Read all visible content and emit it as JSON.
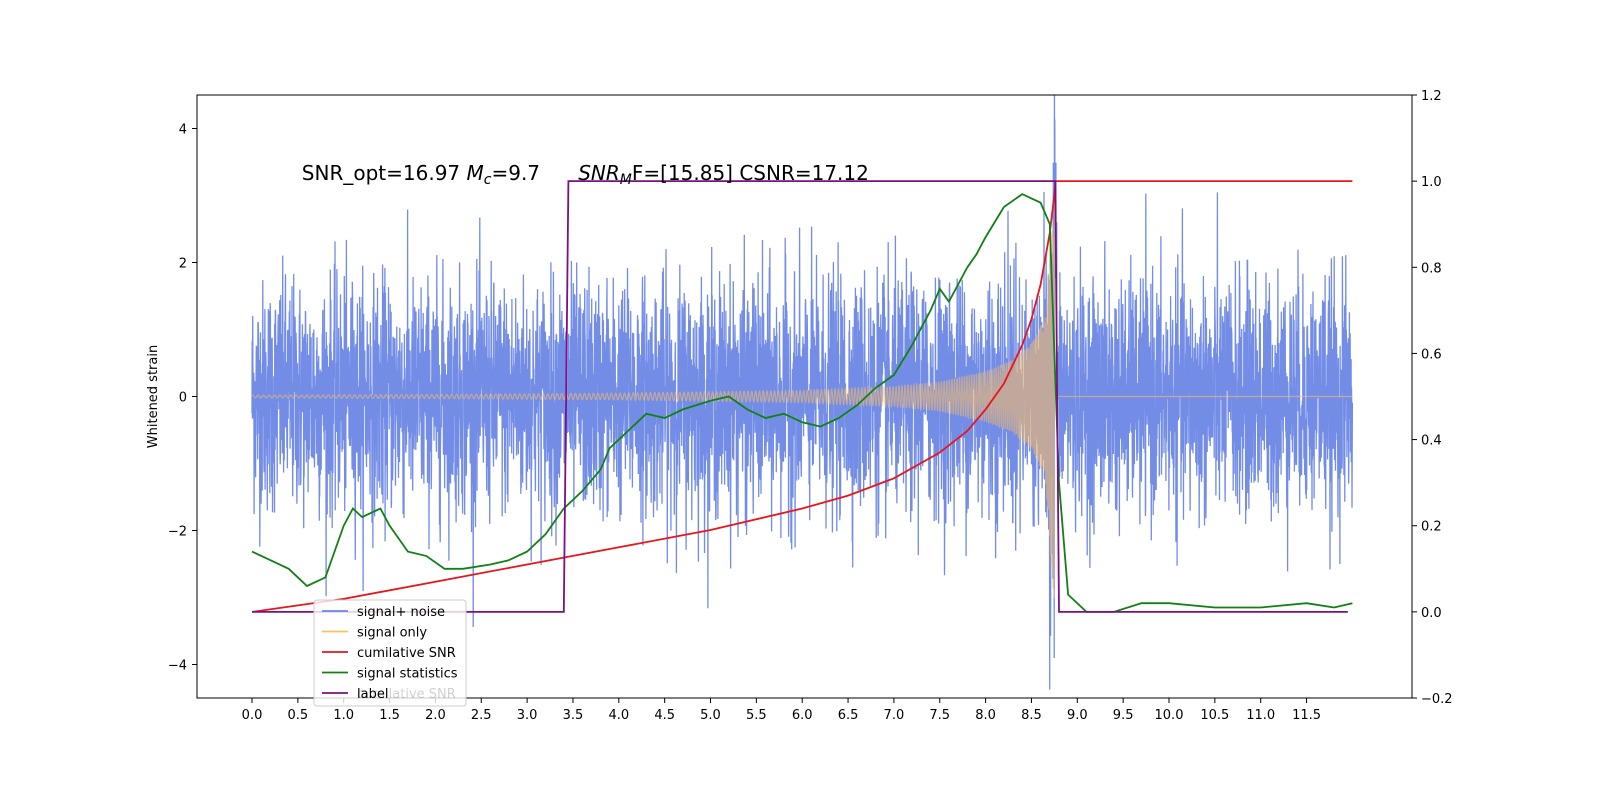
{
  "chart_data": {
    "type": "line",
    "title_parts": [
      "SNR_opt=16.97 ",
      "M",
      "c",
      "=9.7      ",
      "SNR",
      "M",
      "F=[15.85] CSNR=17.12"
    ],
    "ylabel": "Whitened strain",
    "xlabel": "",
    "xlim": [
      -0.6,
      12.65
    ],
    "ylim_left": [
      -4.5,
      4.5
    ],
    "ylim_right": [
      -0.2,
      1.2
    ],
    "x_ticks": [
      "0.0",
      "0.5",
      "1.0",
      "1.5",
      "2.0",
      "2.5",
      "3.0",
      "3.5",
      "4.0",
      "4.5",
      "5.0",
      "5.5",
      "6.0",
      "6.5",
      "7.0",
      "7.5",
      "8.0",
      "8.5",
      "9.0",
      "9.5",
      "10.0",
      "10.5",
      "11.0",
      "11.5"
    ],
    "y_ticks_left": [
      "−4",
      "−2",
      "0",
      "2",
      "4"
    ],
    "y_ticks_right": [
      "−0.2",
      "0.0",
      "0.2",
      "0.4",
      "0.6",
      "0.8",
      "1.0",
      "1.2"
    ],
    "x_range": [
      0.0,
      12.0
    ],
    "merger_time": 8.75,
    "label_window": [
      3.4,
      8.8
    ],
    "noise_amplitude": 0.85,
    "signal_envelope": {
      "x": [
        0.0,
        2.0,
        4.0,
        6.0,
        7.0,
        7.5,
        8.0,
        8.3,
        8.5,
        8.65,
        8.75,
        8.8
      ],
      "amplitude": [
        0.02,
        0.03,
        0.05,
        0.09,
        0.15,
        0.22,
        0.38,
        0.55,
        0.8,
        1.2,
        3.2,
        0.0
      ]
    },
    "series": [
      {
        "name": "signal+ noise",
        "color": "#6b87e6",
        "axis": "left",
        "y_range": [
          -4.1,
          4.1
        ]
      },
      {
        "name": "signal only",
        "color": "#ffc060",
        "axis": "left",
        "y_range": [
          -3.2,
          3.2
        ]
      },
      {
        "name": "cumilative SNR",
        "color": "#e8151c",
        "axis": "right",
        "x": [
          0.0,
          1.0,
          2.0,
          3.0,
          4.0,
          5.0,
          6.0,
          6.5,
          7.0,
          7.5,
          7.8,
          8.0,
          8.2,
          8.4,
          8.5,
          8.6,
          8.7,
          8.75,
          8.76,
          12.0
        ],
        "y": [
          0.0,
          0.03,
          0.07,
          0.11,
          0.15,
          0.19,
          0.24,
          0.27,
          0.31,
          0.37,
          0.42,
          0.47,
          0.53,
          0.62,
          0.68,
          0.76,
          0.88,
          0.97,
          1.0,
          1.0
        ]
      },
      {
        "name": "signal statistics",
        "color": "#128012",
        "axis": "right",
        "x": [
          0.0,
          0.2,
          0.4,
          0.6,
          0.8,
          1.0,
          1.1,
          1.2,
          1.4,
          1.5,
          1.7,
          1.9,
          2.1,
          2.3,
          2.6,
          2.8,
          3.0,
          3.2,
          3.4,
          3.6,
          3.8,
          3.9,
          4.0,
          4.2,
          4.3,
          4.5,
          4.7,
          5.0,
          5.2,
          5.4,
          5.6,
          5.8,
          6.0,
          6.2,
          6.4,
          6.6,
          6.8,
          7.0,
          7.2,
          7.4,
          7.5,
          7.6,
          7.8,
          7.9,
          8.0,
          8.2,
          8.4,
          8.5,
          8.6,
          8.7,
          8.8,
          8.9,
          9.1,
          9.4,
          9.7,
          10.0,
          10.5,
          11.0,
          11.5,
          11.8,
          12.0
        ],
        "y": [
          0.14,
          0.12,
          0.1,
          0.06,
          0.08,
          0.2,
          0.24,
          0.22,
          0.24,
          0.2,
          0.14,
          0.13,
          0.1,
          0.1,
          0.11,
          0.12,
          0.14,
          0.18,
          0.24,
          0.28,
          0.33,
          0.38,
          0.4,
          0.44,
          0.46,
          0.45,
          0.47,
          0.49,
          0.5,
          0.47,
          0.45,
          0.46,
          0.44,
          0.43,
          0.45,
          0.48,
          0.52,
          0.55,
          0.62,
          0.7,
          0.75,
          0.72,
          0.8,
          0.83,
          0.87,
          0.94,
          0.97,
          0.96,
          0.95,
          0.9,
          0.3,
          0.04,
          0.0,
          0.0,
          0.02,
          0.02,
          0.01,
          0.01,
          0.02,
          0.01,
          0.02
        ]
      },
      {
        "name": "label",
        "color": "#7a0f86",
        "axis": "right",
        "x": [
          0.0,
          3.4,
          3.45,
          8.76,
          8.8,
          11.95
        ],
        "y": [
          0.0,
          0.0,
          1.0,
          1.0,
          0.0,
          0.0
        ]
      }
    ],
    "legend": {
      "position": "lower-left",
      "entries": [
        "signal+ noise",
        "signal only",
        "cumilative SNR",
        "signal statistics",
        "label"
      ],
      "overlapped_text": "cumilative SNR"
    }
  }
}
